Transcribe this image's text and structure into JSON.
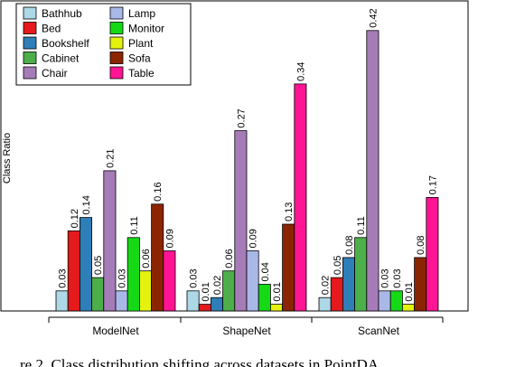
{
  "chart_data": {
    "type": "bar",
    "title": "",
    "xlabel": "",
    "ylabel": "Class Ratio",
    "ylim": [
      0,
      0.44
    ],
    "grid": false,
    "legend_position": "top-left",
    "categories": [
      "ModelNet",
      "ShapeNet",
      "ScanNet"
    ],
    "series": [
      {
        "name": "Bathhub",
        "color": "#add8e6",
        "values": [
          0.03,
          0.03,
          0.02
        ],
        "labels": [
          "0.03",
          "0.03",
          "0.02"
        ]
      },
      {
        "name": "Bed",
        "color": "#e41a1c",
        "values": [
          0.12,
          0.01,
          0.05
        ],
        "labels": [
          "0.12",
          "0.01",
          "0.05"
        ]
      },
      {
        "name": "Bookshelf",
        "color": "#2e7eb8",
        "values": [
          0.14,
          0.02,
          0.08
        ],
        "labels": [
          "0.14",
          "0.02",
          "0.08"
        ]
      },
      {
        "name": "Cabinet",
        "color": "#4daf4a",
        "values": [
          0.05,
          0.06,
          0.11
        ],
        "labels": [
          "0.05",
          "0.06",
          "0.11"
        ]
      },
      {
        "name": "Chair",
        "color": "#a67cb8",
        "values": [
          0.21,
          0.27,
          0.42
        ],
        "labels": [
          "0.21",
          "0.27",
          "0.42"
        ]
      },
      {
        "name": "Lamp",
        "color": "#aab8e8",
        "values": [
          0.03,
          0.09,
          0.03
        ],
        "labels": [
          "0.03",
          "0.09",
          "0.03"
        ]
      },
      {
        "name": "Monitor",
        "color": "#16d916",
        "values": [
          0.11,
          0.04,
          0.03
        ],
        "labels": [
          "0.11",
          "0.04",
          "0.03"
        ]
      },
      {
        "name": "Plant",
        "color": "#e5f20d",
        "values": [
          0.06,
          0.01,
          0.01
        ],
        "labels": [
          "0.06",
          "0.01",
          "0.01"
        ]
      },
      {
        "name": "Sofa",
        "color": "#8b2500",
        "values": [
          0.16,
          0.13,
          0.08
        ],
        "labels": [
          "0.16",
          "0.13",
          "0.08"
        ]
      },
      {
        "name": "Table",
        "color": "#ff1493",
        "values": [
          0.09,
          0.34,
          0.17
        ],
        "labels": [
          "0.09",
          "0.34",
          "0.17"
        ]
      }
    ]
  },
  "caption": "re 2. Class distribution shifting across datasets in PointDA"
}
